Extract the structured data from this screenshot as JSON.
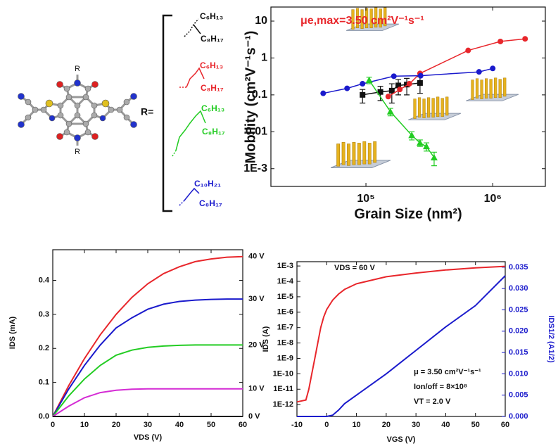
{
  "molecule": {
    "substituents": [
      "R",
      "R"
    ]
  },
  "side_chains": {
    "label": "R=",
    "groups": [
      {
        "upper": "C₆H₁₃",
        "lower": "C₈H₁₇",
        "color": "#111111"
      },
      {
        "upper": "C₆H₁₃",
        "lower": "C₈H₁₇",
        "color": "#e8262b"
      },
      {
        "upper": "C₆H₁₃",
        "lower": "C₈H₁₇",
        "color": "#22cc22"
      },
      {
        "upper": "C₁₀H₂₁",
        "lower": "C₈H₁₇",
        "color": "#1a1acc"
      }
    ]
  },
  "chart_data": [
    {
      "type": "line",
      "markers": true,
      "xscale": "log",
      "yscale": "log",
      "xlabel": "Grain Size (nm²)",
      "ylabel": "Mobility (cm²V⁻¹s⁻¹)",
      "annotation": "μe,max=3.50 cm²V⁻¹s⁻¹",
      "xlim": [
        17800,
        2600000
      ],
      "ylim": [
        0.00033,
        24
      ],
      "xticks": [
        {
          "value": 100000,
          "label": "10⁵"
        },
        {
          "value": 1000000,
          "label": "10⁶"
        }
      ],
      "yticks": [
        {
          "value": 0.001,
          "label": "1E-3"
        },
        0.01,
        0.1,
        1,
        10
      ],
      "series": [
        {
          "color": "#111111",
          "marker": "square",
          "x": [
            94000,
            130000,
            160000,
            180000,
            210000,
            267000
          ],
          "values": [
            0.1,
            0.12,
            0.13,
            0.18,
            0.19,
            0.21
          ],
          "errors": [
            0.04,
            0.05,
            0.07,
            0.08,
            0.09,
            0.1
          ]
        },
        {
          "color": "#e8262b",
          "marker": "circle",
          "x": [
            150000,
            185000,
            220000,
            267000,
            640000,
            1150000,
            1800000
          ],
          "values": [
            0.09,
            0.14,
            0.2,
            0.38,
            1.6,
            2.8,
            3.3
          ]
        },
        {
          "color": "#1a1acc",
          "marker": "circle",
          "x": [
            46000,
            71000,
            94000,
            166000,
            270000,
            780000,
            1000000
          ],
          "values": [
            0.11,
            0.15,
            0.2,
            0.32,
            0.33,
            0.42,
            0.52
          ]
        },
        {
          "color": "#22cc22",
          "marker": "triangle",
          "x": [
            106000,
            156000,
            230000,
            267000,
            300000,
            345000
          ],
          "values": [
            0.25,
            0.035,
            0.008,
            0.005,
            0.004,
            0.002
          ],
          "errors": [
            0.05,
            0.008,
            0.002,
            0.001,
            0.001,
            0.0008
          ]
        }
      ]
    },
    {
      "type": "line",
      "end_labels": true,
      "xlabel": "VDS (V)",
      "ylabel": "IDS (mA)",
      "xlim": [
        0,
        60
      ],
      "ylim": [
        0,
        0.49
      ],
      "xticks": [
        0,
        10,
        20,
        30,
        40,
        50,
        60
      ],
      "yticks": [
        {
          "value": 0,
          "label": "0.0"
        },
        0.1,
        0.2,
        0.3,
        0.4
      ],
      "x": [
        0,
        5,
        10,
        15,
        20,
        25,
        30,
        35,
        40,
        45,
        50,
        55,
        60
      ],
      "series": [
        {
          "name": "40 V",
          "color": "#e8262b",
          "values": [
            0,
            0.09,
            0.17,
            0.24,
            0.3,
            0.35,
            0.39,
            0.42,
            0.44,
            0.455,
            0.463,
            0.468,
            0.47
          ]
        },
        {
          "name": "30 V",
          "color": "#1a1acc",
          "values": [
            0,
            0.08,
            0.15,
            0.21,
            0.26,
            0.29,
            0.315,
            0.33,
            0.338,
            0.342,
            0.344,
            0.345,
            0.345
          ]
        },
        {
          "name": "20 V",
          "color": "#22cc22",
          "values": [
            0,
            0.06,
            0.11,
            0.15,
            0.18,
            0.195,
            0.203,
            0.207,
            0.209,
            0.21,
            0.21,
            0.21,
            0.21
          ]
        },
        {
          "name": "10 V",
          "color": "#d42bd4",
          "values": [
            0,
            0.03,
            0.055,
            0.07,
            0.077,
            0.08,
            0.081,
            0.081,
            0.081,
            0.081,
            0.081,
            0.081,
            0.081
          ]
        },
        {
          "name": "0 V",
          "color": "#111111",
          "values": [
            0,
            0,
            0,
            0,
            0,
            0,
            0,
            0,
            0,
            0,
            0,
            0,
            0
          ]
        }
      ]
    },
    {
      "type": "line",
      "yscale": "log",
      "xlabel": "VGS (V)",
      "ylabel": "IDS (A)",
      "y2label": "IDS1/2 (A1/2)",
      "y2color": "#1a1acc",
      "annotations": [
        "VDS = 60 V",
        "μ = 3.50 cm²V⁻¹s⁻¹",
        "Ion/off = 8×10⁸",
        "VT = 2.0 V"
      ],
      "xlim": [
        -10,
        60
      ],
      "ylim": [
        1.7e-13,
        0.0019
      ],
      "y2lim": [
        0,
        0.0363
      ],
      "xticks": [
        -10,
        0,
        10,
        20,
        30,
        40,
        50,
        60
      ],
      "yticks": [
        {
          "value": 1e-12,
          "label": "1E-12"
        },
        {
          "value": 1e-11,
          "label": "1E-11"
        },
        {
          "value": 1e-10,
          "label": "1E-10"
        },
        {
          "value": 1e-09,
          "label": "1E-9"
        },
        {
          "value": 1e-08,
          "label": "1E-8"
        },
        {
          "value": 1e-07,
          "label": "1E-7"
        },
        {
          "value": 1e-06,
          "label": "1E-6"
        },
        {
          "value": 1e-05,
          "label": "1E-5"
        },
        {
          "value": 0.0001,
          "label": "1E-4"
        },
        {
          "value": 0.001,
          "label": "1E-3"
        }
      ],
      "y2ticks": [
        {
          "value": 0,
          "label": "0.000"
        },
        0.005,
        {
          "value": 0.01,
          "label": "0.010"
        },
        0.015,
        {
          "value": 0.02,
          "label": "0.020"
        },
        0.025,
        {
          "value": 0.03,
          "label": "0.030"
        },
        0.035
      ],
      "series": [
        {
          "color": "#e8262b",
          "x": [
            -10,
            -7,
            -6,
            -5,
            -4,
            -3,
            -2,
            -1,
            0,
            2,
            4,
            6,
            10,
            20,
            30,
            40,
            50,
            60
          ],
          "values": [
            1.5e-12,
            2e-12,
            1e-11,
            1e-10,
            1e-09,
            1e-08,
            1e-07,
            5e-07,
            1.5e-06,
            6e-06,
            1.5e-05,
            3e-05,
            7e-05,
            0.0002,
            0.00035,
            0.00055,
            0.00075,
            0.00095
          ]
        },
        {
          "color": "#1a1acc",
          "axis": "y2",
          "x": [
            -10,
            0,
            2,
            4,
            6,
            10,
            20,
            30,
            40,
            50,
            60
          ],
          "values": [
            0,
            0,
            0.0003,
            0.0015,
            0.003,
            0.005,
            0.01,
            0.0155,
            0.021,
            0.026,
            0.033
          ]
        }
      ]
    }
  ]
}
